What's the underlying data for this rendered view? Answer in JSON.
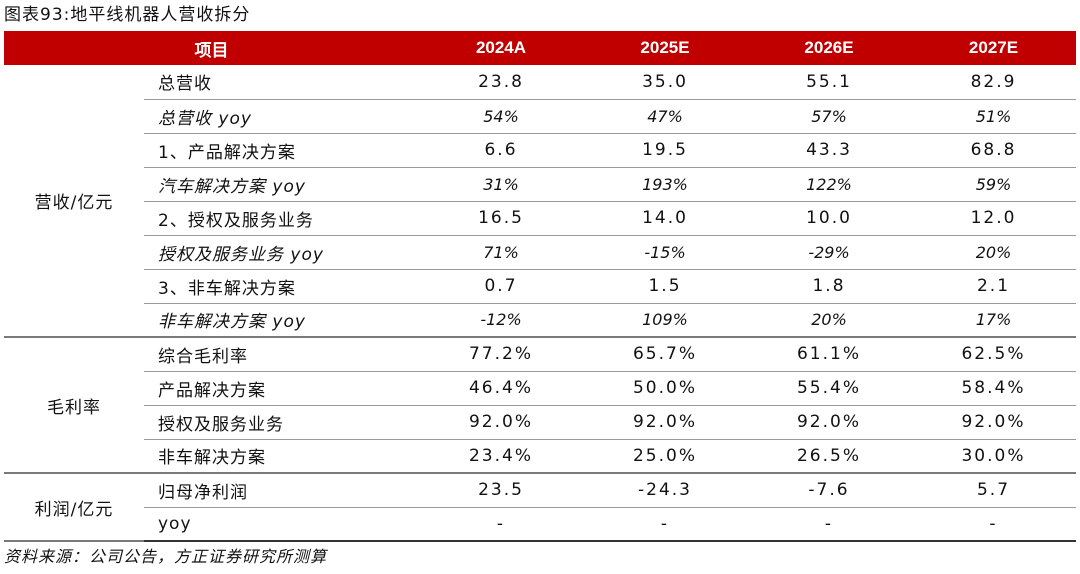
{
  "figure": {
    "title": "图表93:地平线机器人营收拆分",
    "source": "资料来源：公司公告，方正证券研究所测算"
  },
  "table": {
    "header": {
      "item": "项目",
      "years": [
        "2024A",
        "2025E",
        "2026E",
        "2027E"
      ]
    },
    "groups": [
      {
        "name": "营收/亿元",
        "rows": [
          {
            "label": "总营收",
            "yoy": false,
            "values": [
              "23.8",
              "35.0",
              "55.1",
              "82.9"
            ]
          },
          {
            "label": "总营收 yoy",
            "yoy": true,
            "values": [
              "54%",
              "47%",
              "57%",
              "51%"
            ]
          },
          {
            "label": "1、产品解决方案",
            "yoy": false,
            "values": [
              "6.6",
              "19.5",
              "43.3",
              "68.8"
            ]
          },
          {
            "label": "汽车解决方案 yoy",
            "yoy": true,
            "values": [
              "31%",
              "193%",
              "122%",
              "59%"
            ]
          },
          {
            "label": "2、授权及服务业务",
            "yoy": false,
            "values": [
              "16.5",
              "14.0",
              "10.0",
              "12.0"
            ]
          },
          {
            "label": "授权及服务业务 yoy",
            "yoy": true,
            "values": [
              "71%",
              "-15%",
              "-29%",
              "20%"
            ]
          },
          {
            "label": "3、非车解决方案",
            "yoy": false,
            "values": [
              "0.7",
              "1.5",
              "1.8",
              "2.1"
            ]
          },
          {
            "label": "非车解决方案 yoy",
            "yoy": true,
            "values": [
              "-12%",
              "109%",
              "20%",
              "17%"
            ]
          }
        ]
      },
      {
        "name": "毛利率",
        "rows": [
          {
            "label": "综合毛利率",
            "yoy": false,
            "values": [
              "77.2%",
              "65.7%",
              "61.1%",
              "62.5%"
            ]
          },
          {
            "label": "产品解决方案",
            "yoy": false,
            "values": [
              "46.4%",
              "50.0%",
              "55.4%",
              "58.4%"
            ]
          },
          {
            "label": "授权及服务业务",
            "yoy": false,
            "values": [
              "92.0%",
              "92.0%",
              "92.0%",
              "92.0%"
            ]
          },
          {
            "label": "非车解决方案",
            "yoy": false,
            "values": [
              "23.4%",
              "25.0%",
              "26.5%",
              "30.0%"
            ]
          }
        ]
      },
      {
        "name": "利润/亿元",
        "rows": [
          {
            "label": "归母净利润",
            "yoy": false,
            "values": [
              "23.5",
              "-24.3",
              "-7.6",
              "5.7"
            ]
          },
          {
            "label": "yoy",
            "yoy": false,
            "values": [
              "-",
              "-",
              "-",
              "-"
            ]
          }
        ]
      }
    ]
  }
}
